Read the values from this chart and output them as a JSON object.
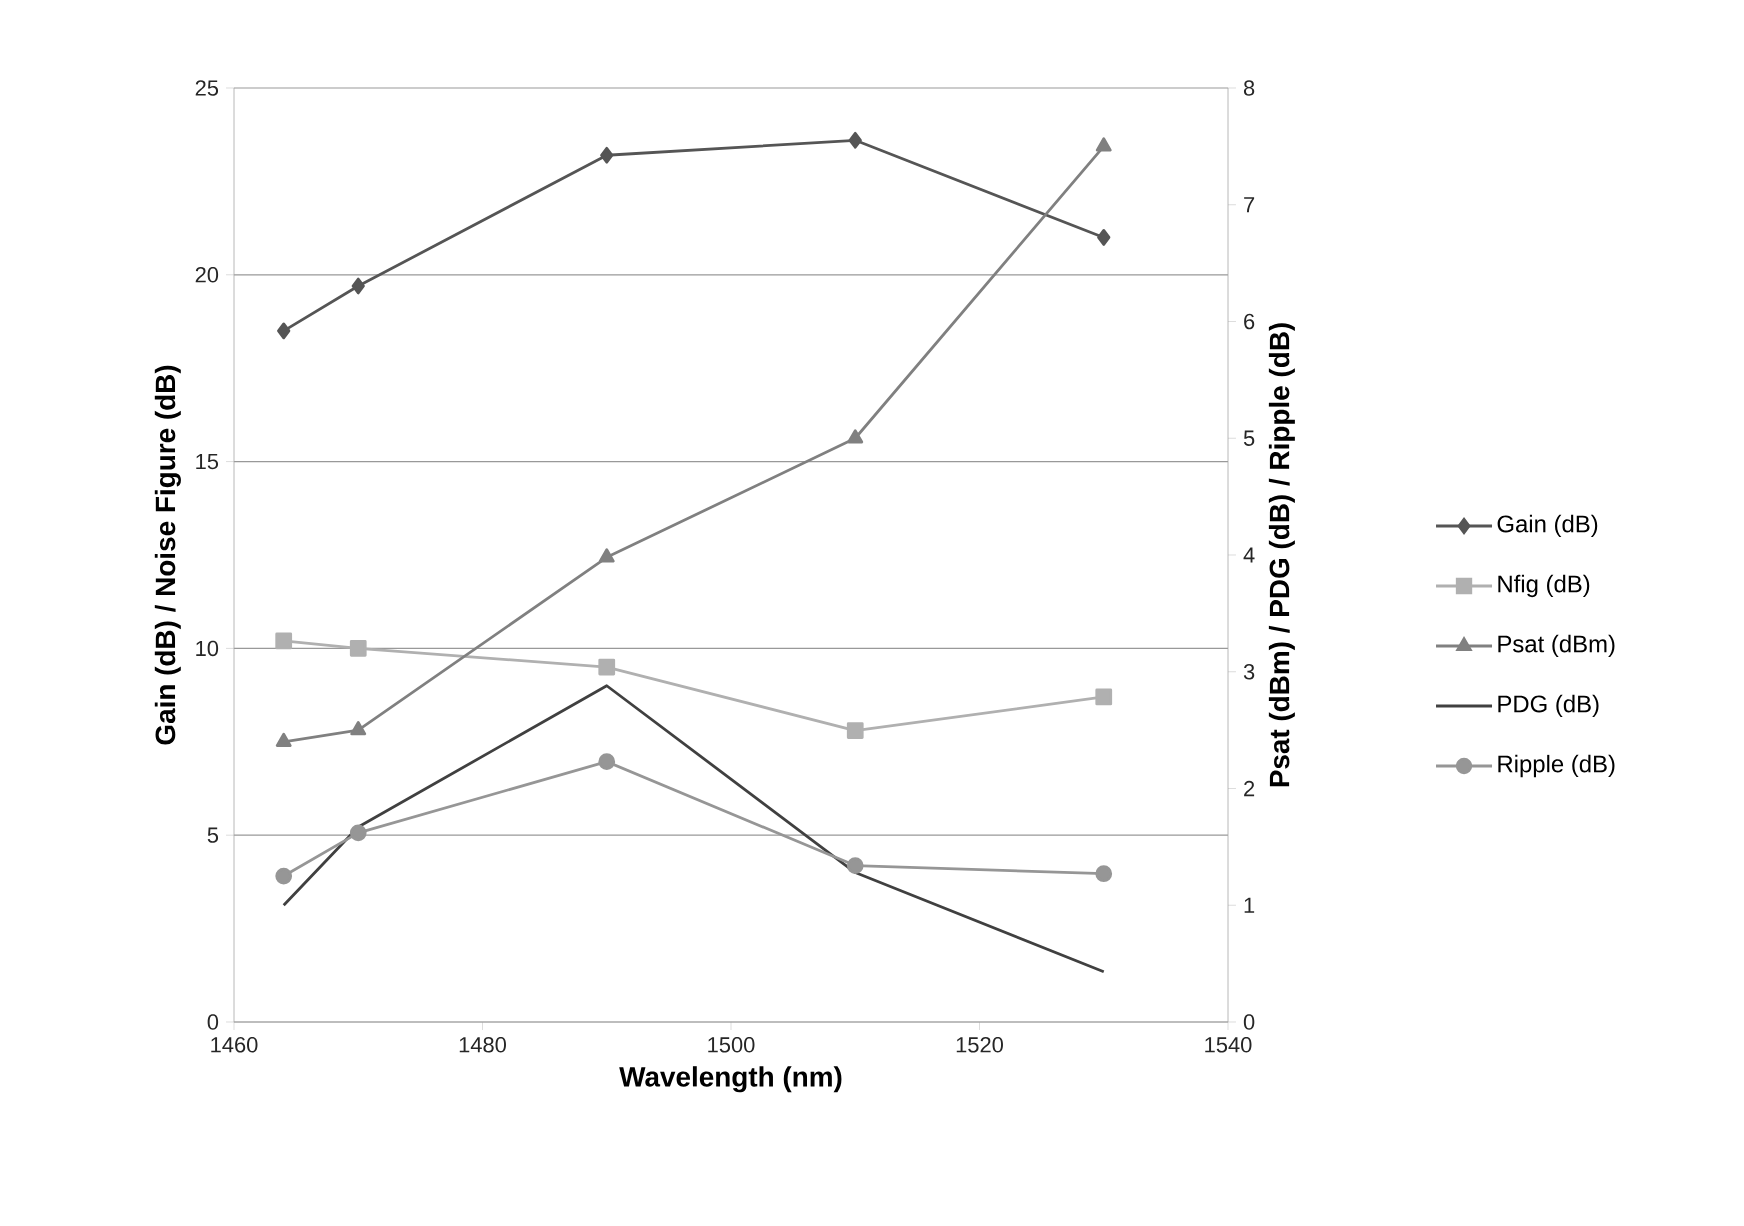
{
  "chart_data": {
    "type": "line",
    "xlabel": "Wavelength (nm)",
    "ylabel": "Gain (dB) / Noise Figure (dB)",
    "y2label": "Psat (dBm) / PDG (dB) / Ripple (dB)",
    "x": [
      1464,
      1470,
      1490,
      1510,
      1530
    ],
    "series": [
      {
        "name": "Gain (dB)",
        "color": "#555555",
        "marker": "diamond",
        "values": [
          18.5,
          19.7,
          23.2,
          23.6,
          21.0
        ]
      },
      {
        "name": "Nfig (dB)",
        "color": "#b0b0b0",
        "marker": "square",
        "values": [
          10.2,
          10.0,
          9.5,
          7.8,
          8.7
        ]
      },
      {
        "name": "Psat (dBm)",
        "color": "#808080",
        "marker": "triangle",
        "axis": "y2",
        "values": [
          2.4,
          2.5,
          3.98,
          5.0,
          7.5
        ]
      },
      {
        "name": "PDG (dB)",
        "color": "#404040",
        "marker": "none",
        "axis": "y2",
        "values": [
          1.0,
          1.67,
          2.88,
          1.28,
          0.43
        ]
      },
      {
        "name": "Ripple (dB)",
        "color": "#969696",
        "marker": "circle",
        "axis": "y2",
        "values": [
          1.25,
          1.62,
          2.23,
          1.34,
          1.27
        ]
      }
    ],
    "xlim": [
      1460,
      1540
    ],
    "xticks": [
      1460,
      1480,
      1500,
      1520,
      1540
    ],
    "ylim": [
      0,
      25
    ],
    "yticks": [
      0,
      5,
      10,
      15,
      20,
      25
    ],
    "y2lim": [
      0,
      8
    ],
    "y2ticks": [
      0,
      1,
      2,
      3,
      4,
      5,
      6,
      7,
      8
    ],
    "grid": "y",
    "legend": "right"
  }
}
